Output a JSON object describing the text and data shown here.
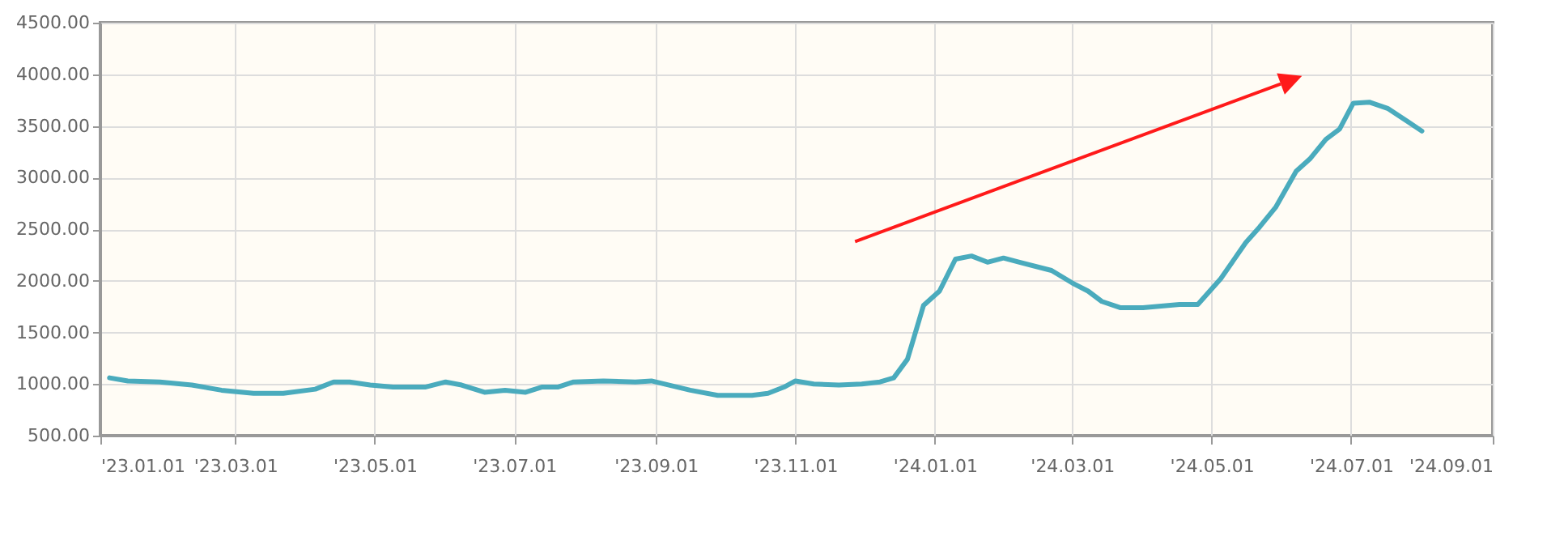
{
  "chart_data": {
    "type": "line",
    "x": [
      "2023-01-05",
      "2023-01-13",
      "2023-01-27",
      "2023-02-10",
      "2023-02-23",
      "2023-03-09",
      "2023-03-22",
      "2023-04-05",
      "2023-04-13",
      "2023-04-20",
      "2023-04-29",
      "2023-05-09",
      "2023-05-23",
      "2023-06-01",
      "2023-06-08",
      "2023-06-18",
      "2023-06-27",
      "2023-07-06",
      "2023-07-13",
      "2023-07-20",
      "2023-07-27",
      "2023-08-09",
      "2023-08-23",
      "2023-08-30",
      "2023-09-16",
      "2023-09-28",
      "2023-10-13",
      "2023-10-20",
      "2023-10-27",
      "2023-11-01",
      "2023-11-09",
      "2023-11-20",
      "2023-11-30",
      "2023-12-08",
      "2023-12-14",
      "2023-12-20",
      "2023-12-27",
      "2024-01-03",
      "2024-01-10",
      "2024-01-17",
      "2024-01-24",
      "2024-01-31",
      "2024-02-07",
      "2024-02-21",
      "2024-03-01",
      "2024-03-08",
      "2024-03-14",
      "2024-03-22",
      "2024-04-01",
      "2024-04-17",
      "2024-04-25",
      "2024-05-05",
      "2024-05-16",
      "2024-05-22",
      "2024-05-29",
      "2024-06-07",
      "2024-06-13",
      "2024-06-20",
      "2024-06-26",
      "2024-07-02",
      "2024-07-09",
      "2024-07-17",
      "2024-07-26",
      "2024-08-01"
    ],
    "series": [
      {
        "color": "#4aabbd",
        "values": [
          1060,
          1030,
          1020,
          990,
          940,
          910,
          910,
          950,
          1020,
          1020,
          990,
          970,
          970,
          1020,
          990,
          920,
          940,
          920,
          970,
          970,
          1020,
          1030,
          1020,
          1030,
          940,
          890,
          890,
          910,
          970,
          1030,
          1000,
          990,
          1000,
          1020,
          1060,
          1240,
          1760,
          1900,
          2210,
          2240,
          2180,
          2220,
          2180,
          2100,
          1980,
          1900,
          1800,
          1740,
          1740,
          1770,
          1770,
          2020,
          2370,
          2520,
          2710,
          3060,
          3180,
          3370,
          3470,
          3720,
          3730,
          3670,
          3540,
          3450
        ]
      }
    ],
    "xlim": [
      "2023-01-01",
      "2024-09-01"
    ],
    "xticks": [
      {
        "value": "2023-01-01",
        "label": "'23.01.01"
      },
      {
        "value": "2023-03-01",
        "label": "'23.03.01"
      },
      {
        "value": "2023-05-01",
        "label": "'23.05.01"
      },
      {
        "value": "2023-07-01",
        "label": "'23.07.01"
      },
      {
        "value": "2023-09-01",
        "label": "'23.09.01"
      },
      {
        "value": "2023-11-01",
        "label": "'23.11.01"
      },
      {
        "value": "2024-01-01",
        "label": "'24.01.01"
      },
      {
        "value": "2024-03-01",
        "label": "'24.03.01"
      },
      {
        "value": "2024-05-01",
        "label": "'24.05.01"
      },
      {
        "value": "2024-07-01",
        "label": "'24.07.01"
      },
      {
        "value": "2024-09-01",
        "label": "'24.09.01"
      }
    ],
    "ylim": [
      500,
      4500
    ],
    "yticks": [
      {
        "value": 500,
        "label": "500.00"
      },
      {
        "value": 1000,
        "label": "1000.00"
      },
      {
        "value": 1500,
        "label": "1500.00"
      },
      {
        "value": 2000,
        "label": "2000.00"
      },
      {
        "value": 2500,
        "label": "2500.00"
      },
      {
        "value": 3000,
        "label": "3000.00"
      },
      {
        "value": 3500,
        "label": "3500.00"
      },
      {
        "value": 4000,
        "label": "4000.00"
      },
      {
        "value": 4500,
        "label": "4500.00"
      }
    ],
    "grid": true,
    "marker": "none",
    "line_style": "solid"
  }
}
